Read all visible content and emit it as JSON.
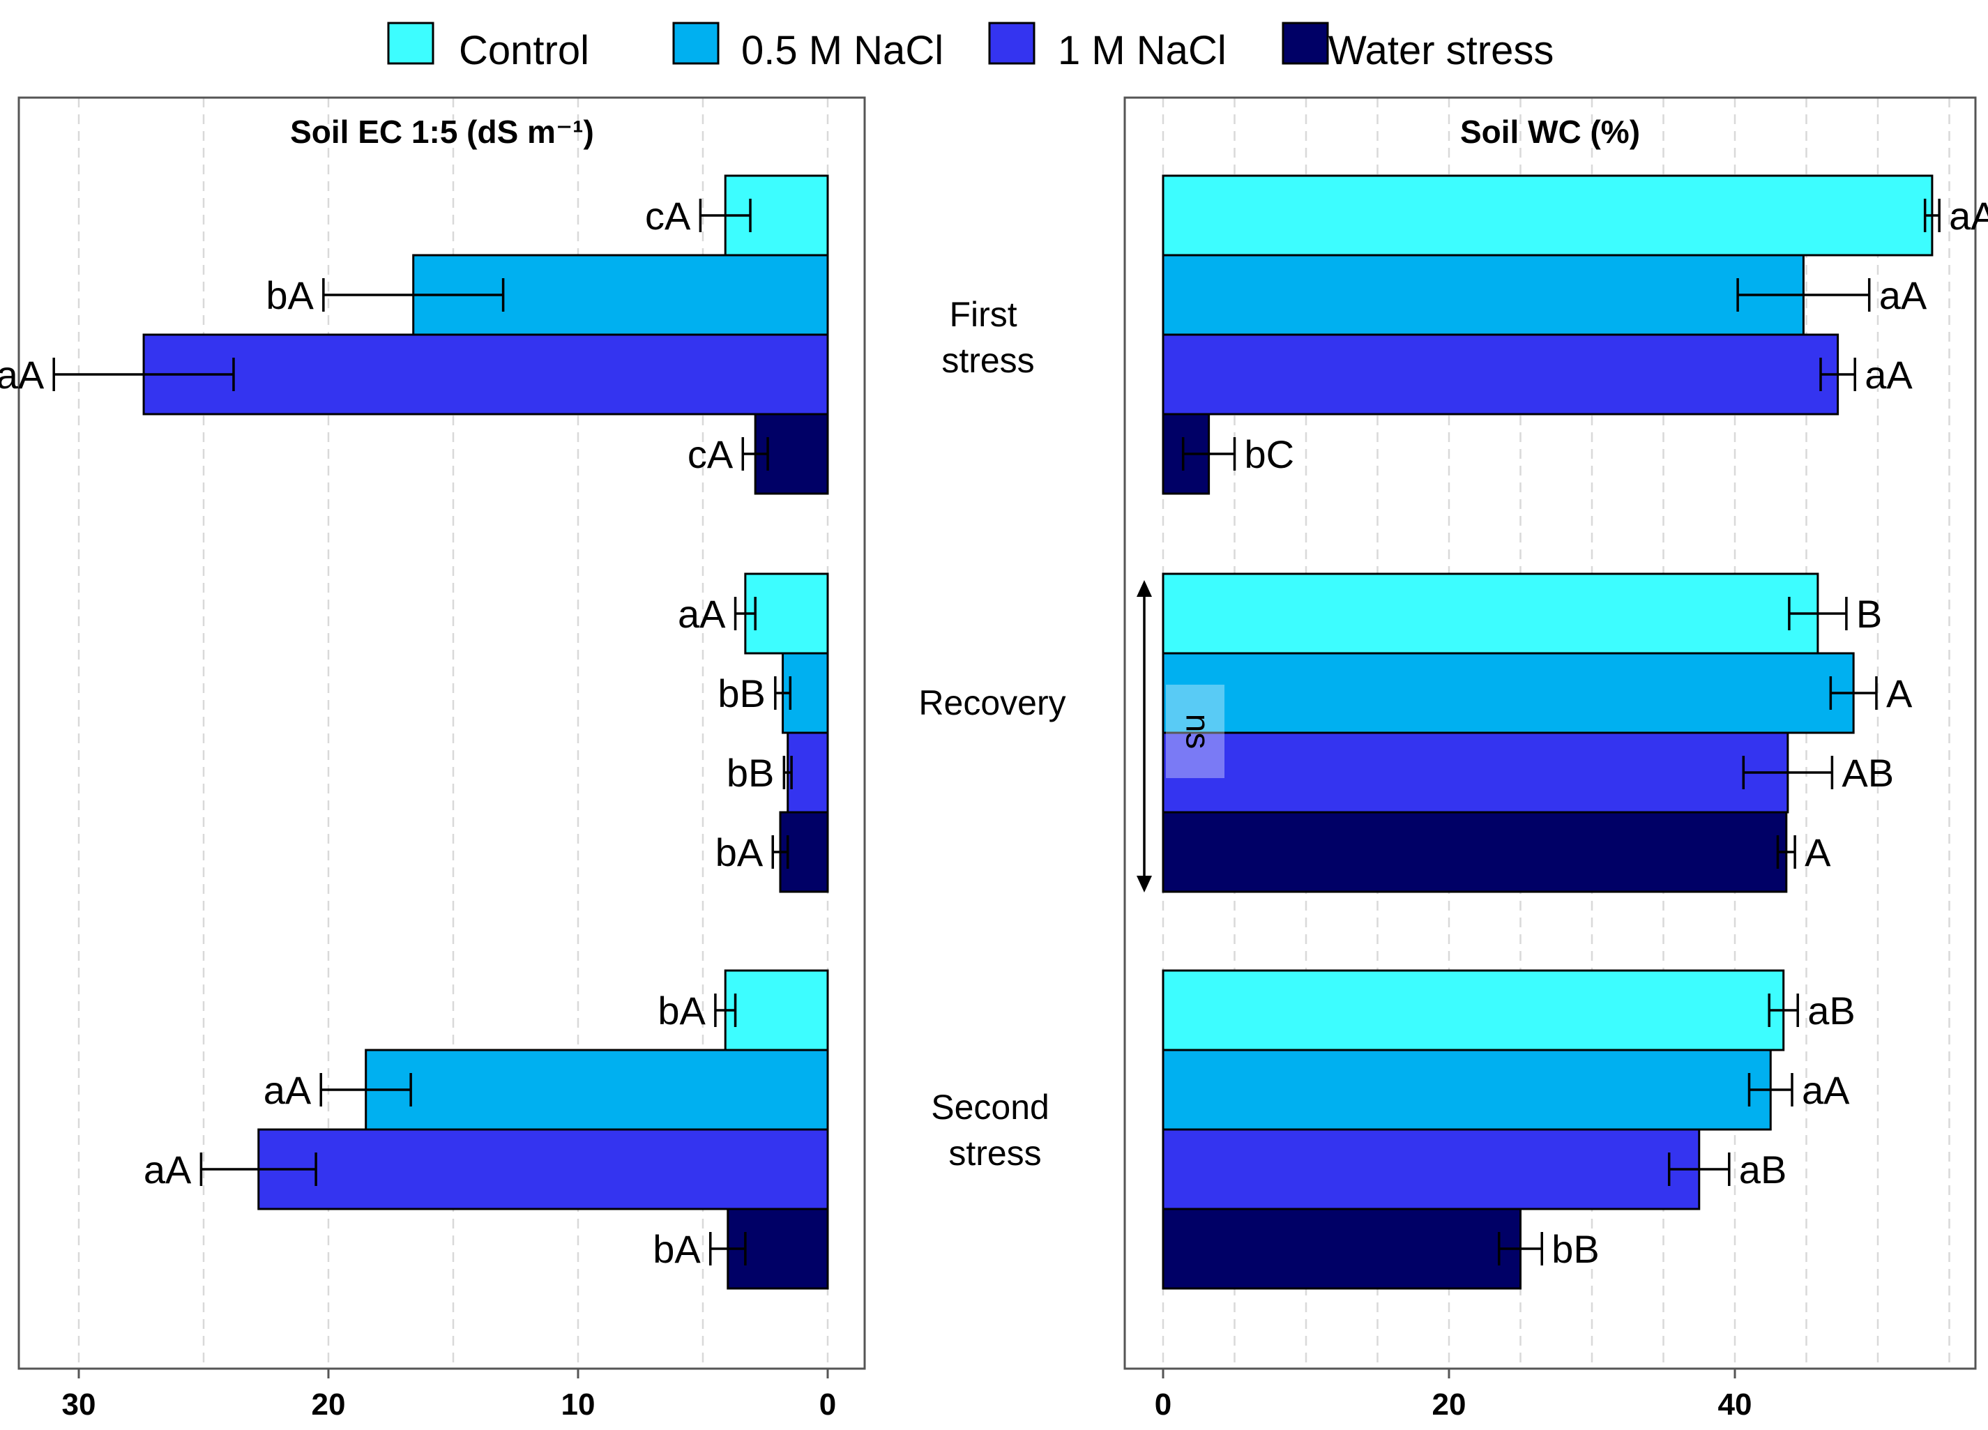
{
  "legend": {
    "items": [
      {
        "label": "Control",
        "color": "#3DFDFF"
      },
      {
        "label": "0.5 M NaCl",
        "color": "#00B0F0"
      },
      {
        "label": "1 M NaCl",
        "color": "#3434F0"
      },
      {
        "label": "Water stress",
        "color": "#000066"
      }
    ]
  },
  "chart_data": [
    {
      "type": "bar",
      "orientation": "horizontal",
      "x_reversed": true,
      "title": "Soil EC 1:5 (dS m⁻¹)",
      "xlim": [
        0,
        32.5
      ],
      "xticks": [
        30,
        20,
        10,
        0
      ],
      "grid": true,
      "groups": [
        "First stress",
        "Recovery",
        "Second stress"
      ],
      "series": [
        {
          "name": "Control",
          "values": [
            4.1,
            3.3,
            4.1
          ],
          "errors": [
            1.0,
            0.4,
            0.4
          ],
          "labels": [
            "cA",
            "aA",
            "bA"
          ]
        },
        {
          "name": "0.5 M NaCl",
          "values": [
            16.6,
            1.8,
            18.5
          ],
          "errors": [
            3.6,
            0.3,
            1.8
          ],
          "labels": [
            "bA",
            "bB",
            "aA"
          ]
        },
        {
          "name": "1 M NaCl",
          "values": [
            27.4,
            1.6,
            22.8
          ],
          "errors": [
            3.6,
            0.15,
            2.3
          ],
          "labels": [
            "aA",
            "bB",
            "aA"
          ]
        },
        {
          "name": "Water stress",
          "values": [
            2.9,
            1.9,
            4.0
          ],
          "errors": [
            0.5,
            0.3,
            0.7
          ],
          "labels": [
            "cA",
            "bA",
            "bA"
          ]
        }
      ]
    },
    {
      "type": "bar",
      "orientation": "horizontal",
      "title": "Soil WC (%)",
      "xlim": [
        0,
        55.5
      ],
      "xticks": [
        0,
        20,
        40
      ],
      "grid": true,
      "groups": [
        "First stress",
        "Recovery",
        "Second stress"
      ],
      "annotation": "ns",
      "series": [
        {
          "name": "Control",
          "values": [
            53.8,
            45.8,
            43.4
          ],
          "errors": [
            0.5,
            2.0,
            1.0
          ],
          "labels": [
            "aA",
            "B",
            "aB"
          ]
        },
        {
          "name": "0.5 M NaCl",
          "values": [
            44.8,
            48.3,
            42.5
          ],
          "errors": [
            4.6,
            1.6,
            1.5
          ],
          "labels": [
            "aA",
            "A",
            "aA"
          ]
        },
        {
          "name": "1 M NaCl",
          "values": [
            47.2,
            43.7,
            37.5
          ],
          "errors": [
            1.2,
            3.1,
            2.1
          ],
          "labels": [
            "aA",
            "AB",
            "aB"
          ]
        },
        {
          "name": "Water stress",
          "values": [
            3.2,
            43.6,
            25.0
          ],
          "errors": [
            1.8,
            0.6,
            1.5
          ],
          "labels": [
            "bC",
            "A",
            "bB"
          ]
        }
      ]
    }
  ],
  "group_labels": [
    {
      "lines": [
        "First",
        "stress"
      ]
    },
    {
      "lines": [
        "Recovery"
      ]
    },
    {
      "lines": [
        "Second",
        "stress"
      ]
    }
  ]
}
